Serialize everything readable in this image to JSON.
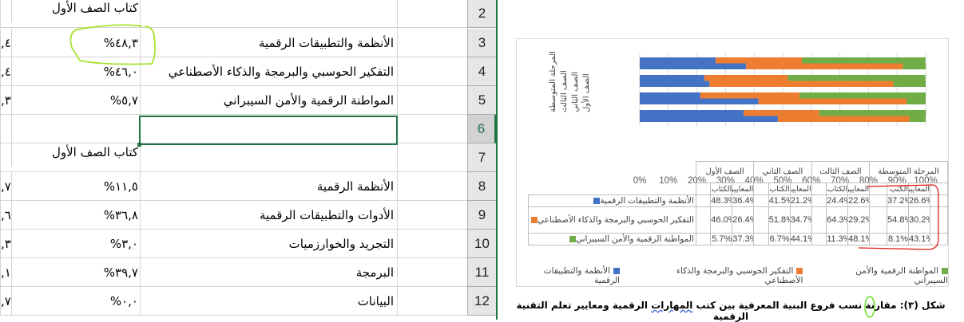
{
  "spreadsheet": {
    "rows": [
      {
        "num": "2",
        "name": "",
        "value": "كتاب الصف الأول",
        "partial": "",
        "is_title": true
      },
      {
        "num": "3",
        "name": "الأنظمة والتطبيقات الرقمية",
        "value": "%٤٨,٣",
        "partial": ",٤"
      },
      {
        "num": "4",
        "name": "التفكير الحوسبي والبرمجة والذكاء الأصطناعي",
        "value": "%٤٦,٠",
        "partial": ",٤"
      },
      {
        "num": "5",
        "name": "المواطنة الرقمية والأمن السيبراني",
        "value": "%٥,٧",
        "partial": ",٣"
      },
      {
        "num": "6",
        "name": "",
        "value": "",
        "partial": "",
        "selected": true
      },
      {
        "num": "7",
        "name": "",
        "value": "كتاب الصف الأول",
        "partial": "",
        "is_title": true
      },
      {
        "num": "8",
        "name": "الأنظمة الرقمية",
        "value": "%١١,٥",
        "partial": ",٧"
      },
      {
        "num": "9",
        "name": "الأدوات والتطبيقات الرقمية",
        "value": "%٣٦,٨",
        "partial": ",٦"
      },
      {
        "num": "10",
        "name": "التجريد والخوارزميات",
        "value": "%٣,٠",
        "partial": ",٣"
      },
      {
        "num": "11",
        "name": "البرمجة",
        "value": "%٣٩,٧",
        "partial": ",١"
      },
      {
        "num": "12",
        "name": "البيانات",
        "value": "%٠,٠",
        "partial": ",٧"
      }
    ]
  },
  "chart_data": {
    "type": "bar",
    "stacked": "100%",
    "orientation": "horizontal",
    "categories": [
      "المعايير - المرحلة المتوسطة",
      "الكتب - المرحلة المتوسطة",
      "المعايير - الصف الثالث",
      "الكتاب - الصف الثالث",
      "المعايير - الصف الثاني",
      "الكتاب - الصف الثاني",
      "المعايير - الصف الأول",
      "الكتاب - الصف الأول"
    ],
    "category_axis_labels": [
      "المرحلة المتوسطة",
      "الصف الثالث",
      "الصف الثاني",
      "الصف الأول"
    ],
    "series": [
      {
        "name": "الأنظمة والتطبيقات الرقمية",
        "color": "#4472C4",
        "values": [
          26.6,
          37.2,
          22.6,
          24.4,
          21.2,
          41.5,
          36.4,
          48.3
        ]
      },
      {
        "name": "التفكير الحوسبي والبرمجة والذكاء الأصطناعي",
        "color": "#ED7D31",
        "values": [
          30.2,
          54.8,
          29.2,
          64.3,
          34.7,
          51.8,
          26.4,
          46.0
        ]
      },
      {
        "name": "المواطنة الرقمية والأمن السيبراني",
        "color": "#70AD47",
        "values": [
          43.1,
          8.1,
          48.1,
          11.3,
          44.1,
          6.7,
          37.3,
          5.7
        ]
      }
    ],
    "xlim": [
      0,
      100
    ],
    "x_ticks": [
      "0%",
      "10%",
      "20%",
      "30%",
      "40%",
      "50%",
      "60%",
      "70%",
      "80%",
      "90%",
      "100%"
    ],
    "grid": true,
    "legend": "bottom"
  },
  "data_table": {
    "groups": [
      "الصف الأول",
      "الصف الثاني",
      "الصف الثالث",
      "المرحلة المتوسطة"
    ],
    "subheaders": {
      "books": "الكتاب",
      "books_middle": "الكتب",
      "standards": "المعايير"
    },
    "rows": [
      {
        "label": "الأنظمة والتطبيقات الرقمية",
        "color": "#4472C4",
        "cells": [
          "48.3%",
          "36.4%",
          "41.5%",
          "21.2%",
          "24.4%",
          "22.6%",
          "37.2%",
          "26.6%"
        ]
      },
      {
        "label": "التفكير الحوسبي والبرمجة والذكاء الأصطناعي",
        "color": "#ED7D31",
        "cells": [
          "46.0%",
          "26.4%",
          "51.8%",
          "34.7%",
          "64.3%",
          "29.2%",
          "54.8%",
          "30.2%"
        ]
      },
      {
        "label": "المواطنة الرقمية والأمن السيبراني",
        "color": "#70AD47",
        "cells": [
          "5.7%",
          "37.3%",
          "6.7%",
          "44.1%",
          "11.3%",
          "48.1%",
          "8.1%",
          "43.1%"
        ]
      }
    ]
  },
  "legend": [
    "المواطنة الرقمية والأمن السيبراني",
    "التفكير الحوسبي والبرمجة والذكاء الأصطناعي",
    "الأنظمة والتطبيقات الرقمية"
  ],
  "caption": {
    "pre": "شكل (٣): مقارنة نسب فروع البنية المعرفية بين كتب ",
    "underlined": "المهارات",
    "post": " الرقمية ومعايير تعلم التقنية الرقمية"
  }
}
